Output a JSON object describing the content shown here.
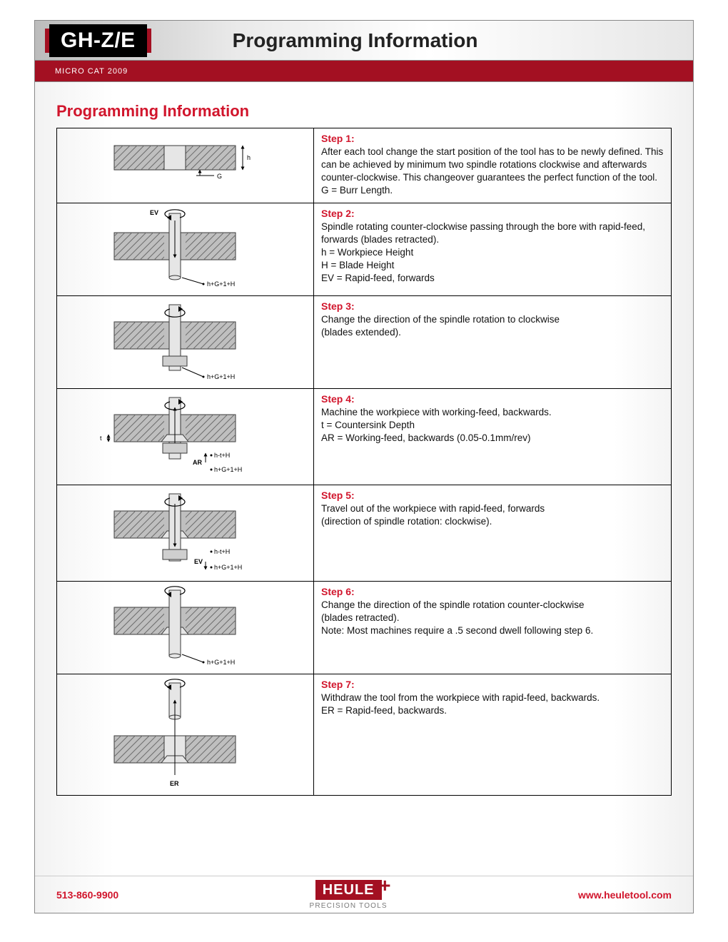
{
  "header": {
    "badge": "GH-Z/E",
    "title": "Programming Information",
    "strip": "MICRO CAT 2009"
  },
  "section_title": "Programming Information",
  "steps": [
    {
      "label": "Step 1:",
      "text": "After each tool change the start position of the tool has to be newly defined. This can be achieved by minimum two spindle rotations clockwise and afterwards counter-clockwise. This changeover guarantees the perfect function of the tool. G = Burr Length."
    },
    {
      "label": "Step 2:",
      "text": "Spindle rotating counter-clockwise passing through the bore with rapid-feed, forwards (blades retracted).\nh = Workpiece Height\nH = Blade Height\nEV = Rapid-feed, forwards"
    },
    {
      "label": "Step 3:",
      "text": "Change the direction of the spindle rotation to clockwise\n(blades extended)."
    },
    {
      "label": "Step 4:",
      "text": "Machine the workpiece with working-feed, backwards.\nt = Countersink Depth\nAR = Working-feed, backwards (0.05-0.1mm/rev)"
    },
    {
      "label": "Step 5:",
      "text": "Travel out of the workpiece with rapid-feed, forwards\n(direction of spindle rotation: clockwise)."
    },
    {
      "label": "Step 6:",
      "text": "Change the direction of the spindle rotation counter-clockwise\n(blades retracted).\nNote: Most machines require a .5 second dwell following step 6."
    },
    {
      "label": "Step 7:",
      "text": "Withdraw the tool from the workpiece with rapid-feed, backwards.\nER = Rapid-feed, backwards."
    }
  ],
  "diagrams": {
    "labels": {
      "s1_h": "h",
      "s1_G": "G",
      "s2_ev": "EV",
      "s2_dim": "h+G+1+H",
      "s3_dim": "h+G+1+H",
      "s4_t": "t",
      "s4_ar": "AR",
      "s4_top": "h-t+H",
      "s4_bot": "h+G+1+H",
      "s5_top": "h-t+H",
      "s5_ev": "EV",
      "s5_bot": "h+G+1+H",
      "s6_dim": "h+G+1+H",
      "s7_er": "ER"
    },
    "colors": {
      "stroke": "#3a3a3a",
      "fill_block": "#bfbfbf",
      "fill_tool": "#e6e6e6",
      "hatch": "#6b6b6b"
    }
  },
  "footer": {
    "phone": "513-860-9900",
    "logo_main": "HEULE",
    "logo_sub": "PRECISION TOOLS",
    "url": "www.heuletool.com"
  }
}
